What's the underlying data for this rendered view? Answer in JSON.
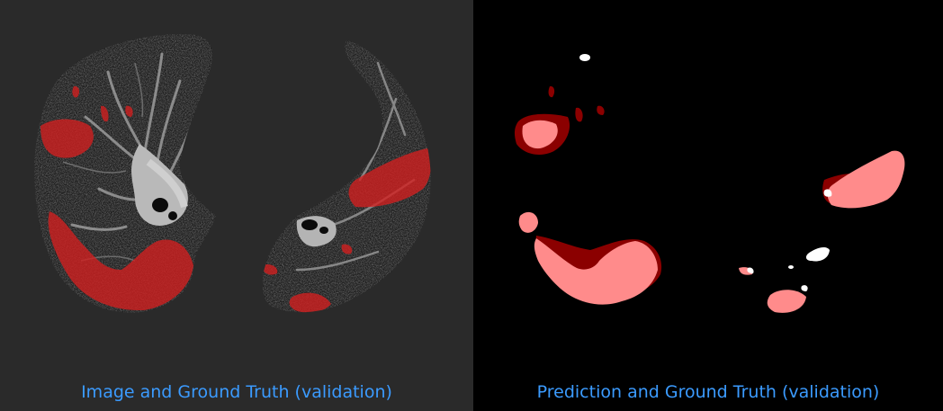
{
  "left_panel": {
    "caption": "Image and Ground Truth (validation)",
    "background": "#2a2a2a",
    "overlay_color": "#d41f1f"
  },
  "right_panel": {
    "caption": "Prediction and Ground Truth (validation)",
    "background": "#000000",
    "colors": {
      "ground_truth": "#8b0000",
      "prediction_overlap": "#ff8b8b",
      "prediction_only": "#ffffff"
    }
  },
  "caption_color": "#3b9bff"
}
